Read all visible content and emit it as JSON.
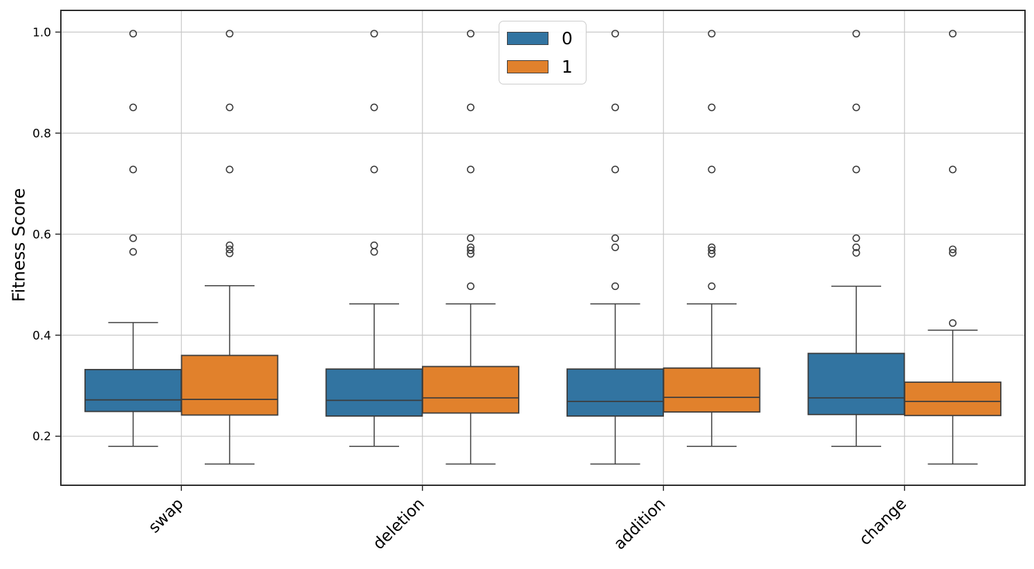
{
  "chart_data": {
    "type": "boxplot",
    "title": "",
    "xlabel": "",
    "ylabel": "Fitness Score",
    "categories": [
      "swap",
      "deletion",
      "addition",
      "change"
    ],
    "xlim": [
      -0.5,
      3.5
    ],
    "ylim": [
      0.103,
      1.043
    ],
    "grid": true,
    "grid_color": "#c8c8c8",
    "box_edge_color": "#3c3c3c",
    "spine_color": "#2b2b2b",
    "marker": {
      "shape": "circle",
      "fill": "none",
      "edge_color": "#3c3c3c"
    },
    "yticks": [
      {
        "value": 0.2,
        "label": "0.2"
      },
      {
        "value": 0.4,
        "label": "0.4"
      },
      {
        "value": 0.6,
        "label": "0.6"
      },
      {
        "value": 0.8,
        "label": "0.8"
      },
      {
        "value": 1.0,
        "label": "1.0"
      }
    ],
    "legend": {
      "position": "upper center",
      "entries": [
        {
          "label": "0",
          "color": "#3274a1"
        },
        {
          "label": "1",
          "color": "#e1812c"
        }
      ]
    },
    "series": [
      {
        "name": "0",
        "color": "#3274a1",
        "boxes": [
          {
            "category": "swap",
            "whislo": 0.18,
            "q1": 0.249,
            "med": 0.272,
            "q3": 0.332,
            "whishi": 0.425,
            "fliers": [
              0.565,
              0.592,
              0.728,
              0.851,
              0.997
            ]
          },
          {
            "category": "deletion",
            "whislo": 0.18,
            "q1": 0.24,
            "med": 0.271,
            "q3": 0.333,
            "whishi": 0.462,
            "fliers": [
              0.565,
              0.578,
              0.728,
              0.851,
              0.997
            ]
          },
          {
            "category": "addition",
            "whislo": 0.145,
            "q1": 0.24,
            "med": 0.269,
            "q3": 0.333,
            "whishi": 0.462,
            "fliers": [
              0.497,
              0.574,
              0.592,
              0.728,
              0.851,
              0.997
            ]
          },
          {
            "category": "change",
            "whislo": 0.18,
            "q1": 0.243,
            "med": 0.276,
            "q3": 0.364,
            "whishi": 0.497,
            "fliers": [
              0.563,
              0.574,
              0.592,
              0.728,
              0.851,
              0.997
            ]
          }
        ]
      },
      {
        "name": "1",
        "color": "#e1812c",
        "boxes": [
          {
            "category": "swap",
            "whislo": 0.145,
            "q1": 0.242,
            "med": 0.273,
            "q3": 0.36,
            "whishi": 0.498,
            "fliers": [
              0.562,
              0.57,
              0.578,
              0.728,
              0.851,
              0.997
            ]
          },
          {
            "category": "deletion",
            "whislo": 0.145,
            "q1": 0.246,
            "med": 0.276,
            "q3": 0.338,
            "whishi": 0.462,
            "fliers": [
              0.497,
              0.561,
              0.568,
              0.574,
              0.592,
              0.728,
              0.851,
              0.997
            ]
          },
          {
            "category": "addition",
            "whislo": 0.18,
            "q1": 0.248,
            "med": 0.277,
            "q3": 0.335,
            "whishi": 0.462,
            "fliers": [
              0.497,
              0.561,
              0.568,
              0.574,
              0.728,
              0.851,
              0.997
            ]
          },
          {
            "category": "change",
            "whislo": 0.145,
            "q1": 0.241,
            "med": 0.269,
            "q3": 0.307,
            "whishi": 0.41,
            "fliers": [
              0.424,
              0.563,
              0.57,
              0.728,
              0.997
            ]
          }
        ]
      }
    ]
  }
}
